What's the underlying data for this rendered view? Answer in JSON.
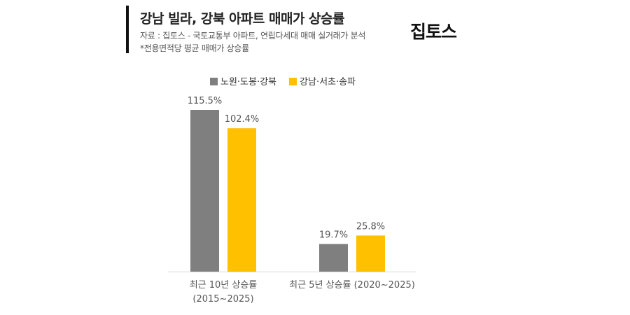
{
  "header": {
    "title": "강남 빌라, 강북 아파트 매매가 상승률",
    "source": "자료 : 집토스 - 국토교통부 아파트, 연립다세대 매매 실거래가 분석",
    "note": "*전용면적당 평균 매매가 상승률",
    "logo": "집토스"
  },
  "chart_data": {
    "type": "bar",
    "title": "강남 빌라, 강북 아파트 매매가 상승률",
    "categories": [
      "최근 10년 상승률 (2015~2025)",
      "최근 5년 상승률 (2020~2025)"
    ],
    "category_lines": [
      [
        "최근 10년 상승률",
        "(2015~2025)"
      ],
      [
        "최근 5년 상승률 (2020~2025)"
      ]
    ],
    "series": [
      {
        "name": "노원·도봉·강북",
        "color": "#7f7f7f",
        "values": [
          115.5,
          19.7
        ],
        "labels": [
          "115.5%",
          "19.7%"
        ]
      },
      {
        "name": "강남·서초·송파",
        "color": "#ffc000",
        "values": [
          102.4,
          25.8
        ],
        "labels": [
          "102.4%",
          "25.8%"
        ]
      }
    ],
    "unit": "%",
    "legend": "top",
    "grid": false,
    "ylim": [
      0,
      120
    ]
  }
}
